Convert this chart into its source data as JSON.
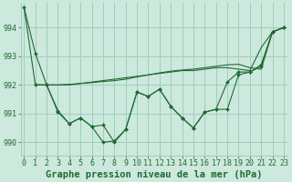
{
  "background_color": "#cde8dc",
  "grid_color": "#9ecfbe",
  "line_color": "#1e6b35",
  "xlabel": "Graphe pression niveau de la mer (hPa)",
  "xlabel_fontsize": 7.5,
  "tick_fontsize": 6,
  "xlim": [
    -0.3,
    23.3
  ],
  "ylim": [
    989.55,
    994.85
  ],
  "yticks": [
    990,
    991,
    992,
    993,
    994
  ],
  "xticks": [
    0,
    1,
    2,
    3,
    4,
    5,
    6,
    7,
    8,
    9,
    10,
    11,
    12,
    13,
    14,
    15,
    16,
    17,
    18,
    19,
    20,
    21,
    22,
    23
  ],
  "series": [
    {
      "x": [
        0,
        1,
        2,
        3,
        4,
        5,
        6,
        7,
        8,
        9,
        10,
        11,
        12,
        13,
        14,
        15,
        16,
        17,
        18,
        19,
        20,
        21,
        22,
        23
      ],
      "y": [
        994.7,
        993.1,
        992.0,
        991.1,
        990.65,
        990.85,
        990.55,
        990.0,
        990.05,
        990.45,
        991.75,
        991.6,
        991.85,
        991.25,
        990.85,
        990.5,
        991.05,
        991.15,
        992.1,
        992.45,
        992.45,
        992.7,
        993.85,
        994.0
      ],
      "has_markers": true,
      "markersize": 2.0
    },
    {
      "x": [
        0,
        1,
        2,
        3,
        4,
        5,
        6,
        7,
        8,
        9,
        10,
        11,
        12,
        13,
        14,
        15,
        16,
        17,
        18,
        19,
        20,
        21,
        22,
        23
      ],
      "y": [
        994.7,
        992.0,
        992.0,
        992.0,
        992.0,
        992.05,
        992.1,
        992.15,
        992.2,
        992.25,
        992.3,
        992.35,
        992.4,
        992.45,
        992.5,
        992.5,
        992.55,
        992.6,
        992.6,
        992.55,
        992.5,
        993.3,
        993.85,
        994.0
      ],
      "has_markers": false,
      "markersize": 0
    },
    {
      "x": [
        1,
        2,
        3,
        4,
        5,
        6,
        7,
        8,
        9,
        10,
        11,
        12,
        13,
        14,
        15,
        16,
        17,
        18,
        19,
        20,
        21,
        22,
        23
      ],
      "y": [
        992.0,
        992.0,
        992.0,
        992.02,
        992.05,
        992.08,
        992.12,
        992.15,
        992.2,
        992.28,
        992.35,
        992.42,
        992.48,
        992.52,
        992.55,
        992.6,
        992.65,
        992.7,
        992.72,
        992.6,
        992.55,
        993.85,
        994.0
      ],
      "has_markers": false,
      "markersize": 0
    },
    {
      "x": [
        1,
        2,
        3,
        4,
        5,
        6,
        7,
        8,
        9,
        10,
        11,
        12,
        13,
        14,
        15,
        16,
        17,
        18,
        19,
        20,
        21,
        22,
        23
      ],
      "y": [
        992.0,
        992.0,
        991.05,
        990.65,
        990.85,
        990.55,
        990.6,
        990.0,
        990.45,
        991.75,
        991.6,
        991.85,
        991.25,
        990.85,
        990.5,
        991.05,
        991.15,
        991.15,
        992.35,
        992.45,
        992.65,
        993.85,
        994.0
      ],
      "has_markers": true,
      "markersize": 2.0
    }
  ]
}
